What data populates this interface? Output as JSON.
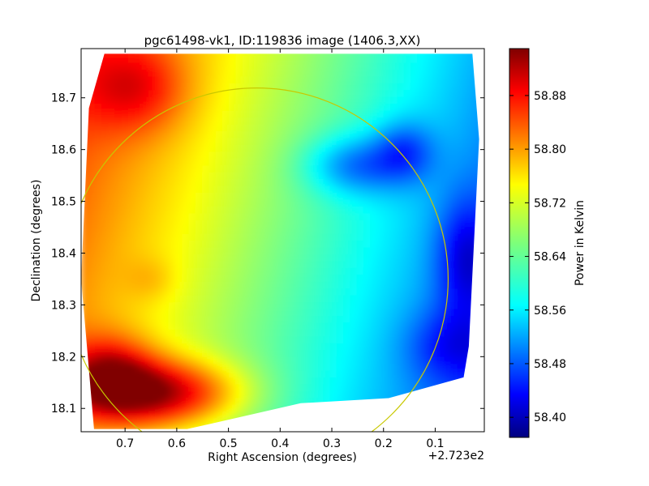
{
  "chart_data": {
    "type": "heatmap",
    "title": "pgc61498-vk1, ID:119836 image (1406.3,XX)",
    "xlabel": "Right Ascension (degrees)",
    "ylabel": "Declination (degrees)",
    "x_offset_label": "+2.723e2",
    "xlim": [
      0.785,
      0.005
    ],
    "ylim": [
      18.055,
      18.795
    ],
    "x_ticks": [
      0.7,
      0.6,
      0.5,
      0.4,
      0.3,
      0.2,
      0.1
    ],
    "x_tick_labels": [
      "0.7",
      "0.6",
      "0.5",
      "0.4",
      "0.3",
      "0.2",
      "0.1"
    ],
    "y_ticks": [
      18.1,
      18.2,
      18.3,
      18.4,
      18.5,
      18.6,
      18.7
    ],
    "y_tick_labels": [
      "18.1",
      "18.2",
      "18.3",
      "18.4",
      "18.5",
      "18.6",
      "18.7"
    ],
    "colorbar": {
      "label": "Power in Kelvin",
      "range": [
        58.37,
        58.95
      ],
      "ticks": [
        58.4,
        58.48,
        58.56,
        58.64,
        58.72,
        58.8,
        58.88
      ],
      "tick_labels": [
        "58.40",
        "58.48",
        "58.56",
        "58.64",
        "58.72",
        "58.80",
        "58.88"
      ],
      "colormap": "jet"
    },
    "circle": {
      "center_x": 0.445,
      "center_y": 18.35,
      "radius": 0.37,
      "color": "#c8c800"
    },
    "map_region": [
      [
        0.74,
        18.785
      ],
      [
        0.028,
        18.785
      ],
      [
        0.015,
        18.62
      ],
      [
        0.035,
        18.22
      ],
      [
        0.045,
        18.16
      ],
      [
        0.19,
        18.12
      ],
      [
        0.36,
        18.11
      ],
      [
        0.58,
        18.06
      ],
      [
        0.76,
        18.06
      ],
      [
        0.785,
        18.35
      ],
      [
        0.77,
        18.68
      ]
    ],
    "hotspots": [
      {
        "x": 0.64,
        "y": 18.13,
        "value": 58.93,
        "sx": 0.11,
        "sy": 0.045
      },
      {
        "x": 0.73,
        "y": 18.17,
        "value": 58.88,
        "sx": 0.06,
        "sy": 0.05
      },
      {
        "x": 0.68,
        "y": 18.72,
        "value": 58.82,
        "sx": 0.07,
        "sy": 0.06
      },
      {
        "x": 0.04,
        "y": 18.39,
        "value": 58.38,
        "sx": 0.04,
        "sy": 0.08
      },
      {
        "x": 0.07,
        "y": 18.22,
        "value": 58.42,
        "sx": 0.06,
        "sy": 0.05
      },
      {
        "x": 0.25,
        "y": 18.57,
        "value": 58.45,
        "sx": 0.07,
        "sy": 0.04
      },
      {
        "x": 0.16,
        "y": 18.6,
        "value": 58.44,
        "sx": 0.04,
        "sy": 0.04
      },
      {
        "x": 0.65,
        "y": 18.35,
        "value": 58.74,
        "sx": 0.035,
        "sy": 0.03
      }
    ],
    "colors": {
      "frame": "#000000"
    }
  }
}
